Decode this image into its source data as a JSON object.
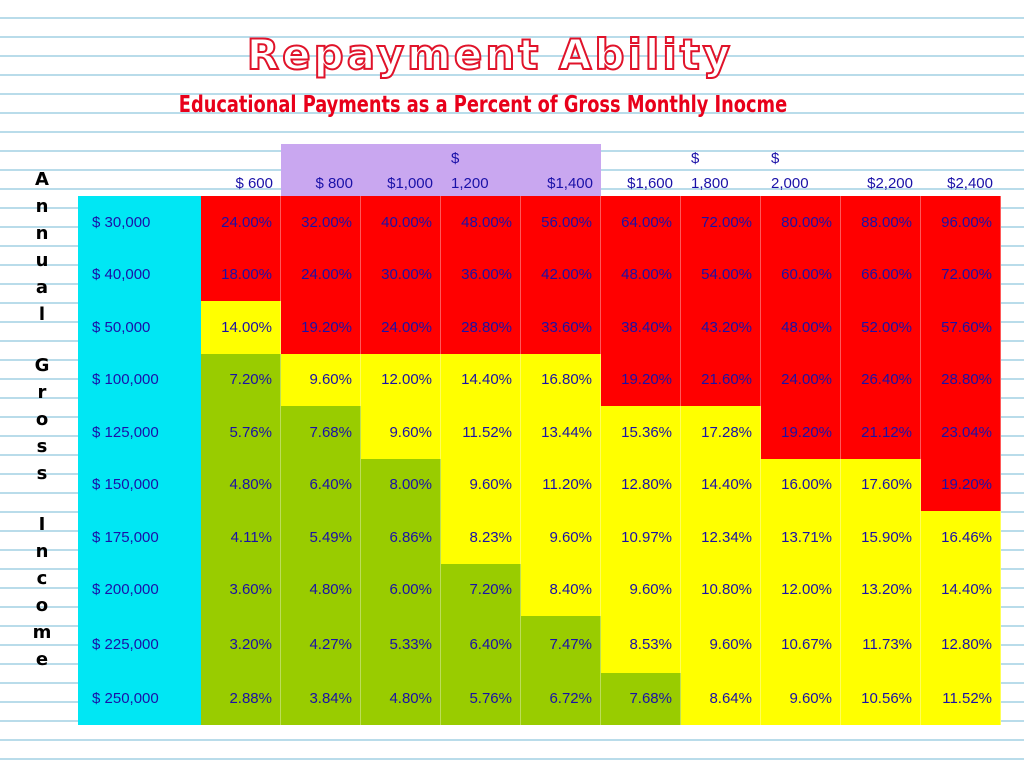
{
  "title": "Repayment Ability",
  "subtitle": "Educational Payments as a Percent of Gross Monthly Inocme",
  "side_label_words": [
    "Annual",
    "Gross",
    "Income"
  ],
  "colors": {
    "red": "#ff0000",
    "yellow": "#ffff00",
    "green": "#99cc00",
    "cyan": "#00e7f4",
    "purple": "#c9a7f0",
    "text": "#1a11a8"
  },
  "columns": [
    {
      "label": "$ 600",
      "split": false,
      "highlight": false
    },
    {
      "label": "$  800",
      "split": false,
      "highlight": true
    },
    {
      "label": "$1,000",
      "split": false,
      "highlight": true
    },
    {
      "label": "$",
      "label2": "1,200",
      "split": true,
      "highlight": true
    },
    {
      "label": "$1,400",
      "split": false,
      "highlight": true
    },
    {
      "label": "$1,600",
      "split": false,
      "highlight": false
    },
    {
      "label": "$",
      "label2": "1,800",
      "split": true,
      "highlight": false
    },
    {
      "label": "$",
      "label2": "2,000",
      "split": true,
      "highlight": false
    },
    {
      "label": "$2,200",
      "split": false,
      "highlight": false
    },
    {
      "label": "$2,400",
      "split": false,
      "highlight": false
    }
  ],
  "rows": [
    {
      "income": "$   30,000",
      "values": [
        "24.00%",
        "32.00%",
        "40.00%",
        "48.00%",
        "56.00%",
        "64.00%",
        "72.00%",
        "80.00%",
        "88.00%",
        "96.00%"
      ],
      "colors": [
        "red",
        "red",
        "red",
        "red",
        "red",
        "red",
        "red",
        "red",
        "red",
        "red"
      ]
    },
    {
      "income": "$   40,000",
      "values": [
        "18.00%",
        "24.00%",
        "30.00%",
        "36.00%",
        "42.00%",
        "48.00%",
        "54.00%",
        "60.00%",
        "66.00%",
        "72.00%"
      ],
      "colors": [
        "red",
        "red",
        "red",
        "red",
        "red",
        "red",
        "red",
        "red",
        "red",
        "red"
      ]
    },
    {
      "income": "$   50,000",
      "values": [
        "14.00%",
        "19.20%",
        "24.00%",
        "28.80%",
        "33.60%",
        "38.40%",
        "43.20%",
        "48.00%",
        "52.00%",
        "57.60%"
      ],
      "colors": [
        "yellow",
        "red",
        "red",
        "red",
        "red",
        "red",
        "red",
        "red",
        "red",
        "red"
      ]
    },
    {
      "income": "$ 100,000",
      "values": [
        "7.20%",
        "9.60%",
        "12.00%",
        "14.40%",
        "16.80%",
        "19.20%",
        "21.60%",
        "24.00%",
        "26.40%",
        "28.80%"
      ],
      "colors": [
        "green",
        "yellow",
        "yellow",
        "yellow",
        "yellow",
        "red",
        "red",
        "red",
        "red",
        "red"
      ]
    },
    {
      "income": "$ 125,000",
      "values": [
        "5.76%",
        "7.68%",
        "9.60%",
        "11.52%",
        "13.44%",
        "15.36%",
        "17.28%",
        "19.20%",
        "21.12%",
        "23.04%"
      ],
      "colors": [
        "green",
        "green",
        "yellow",
        "yellow",
        "yellow",
        "yellow",
        "yellow",
        "red",
        "red",
        "red"
      ]
    },
    {
      "income": "$ 150,000",
      "values": [
        "4.80%",
        "6.40%",
        "8.00%",
        "9.60%",
        "11.20%",
        "12.80%",
        "14.40%",
        "16.00%",
        "17.60%",
        "19.20%"
      ],
      "colors": [
        "green",
        "green",
        "green",
        "yellow",
        "yellow",
        "yellow",
        "yellow",
        "yellow",
        "yellow",
        "red"
      ]
    },
    {
      "income": "$ 175,000",
      "values": [
        "4.11%",
        "5.49%",
        "6.86%",
        "8.23%",
        "9.60%",
        "10.97%",
        "12.34%",
        "13.71%",
        "15.90%",
        "16.46%"
      ],
      "colors": [
        "green",
        "green",
        "green",
        "yellow",
        "yellow",
        "yellow",
        "yellow",
        "yellow",
        "yellow",
        "yellow"
      ]
    },
    {
      "income": "$ 200,000",
      "values": [
        "3.60%",
        "4.80%",
        "6.00%",
        "7.20%",
        "8.40%",
        "9.60%",
        "10.80%",
        "12.00%",
        "13.20%",
        "14.40%"
      ],
      "colors": [
        "green",
        "green",
        "green",
        "green",
        "yellow",
        "yellow",
        "yellow",
        "yellow",
        "yellow",
        "yellow"
      ]
    },
    {
      "income": "$ 225,000",
      "values": [
        "3.20%",
        "4.27%",
        "5.33%",
        "6.40%",
        "7.47%",
        "8.53%",
        "9.60%",
        "10.67%",
        "11.73%",
        "12.80%"
      ],
      "colors": [
        "green",
        "green",
        "green",
        "green",
        "green",
        "yellow",
        "yellow",
        "yellow",
        "yellow",
        "yellow"
      ]
    },
    {
      "income": "$ 250,000",
      "values": [
        "2.88%",
        "3.84%",
        "4.80%",
        "5.76%",
        "6.72%",
        "7.68%",
        "8.64%",
        "9.60%",
        "10.56%",
        "11.52%"
      ],
      "colors": [
        "green",
        "green",
        "green",
        "green",
        "green",
        "green",
        "yellow",
        "yellow",
        "yellow",
        "yellow"
      ]
    }
  ]
}
